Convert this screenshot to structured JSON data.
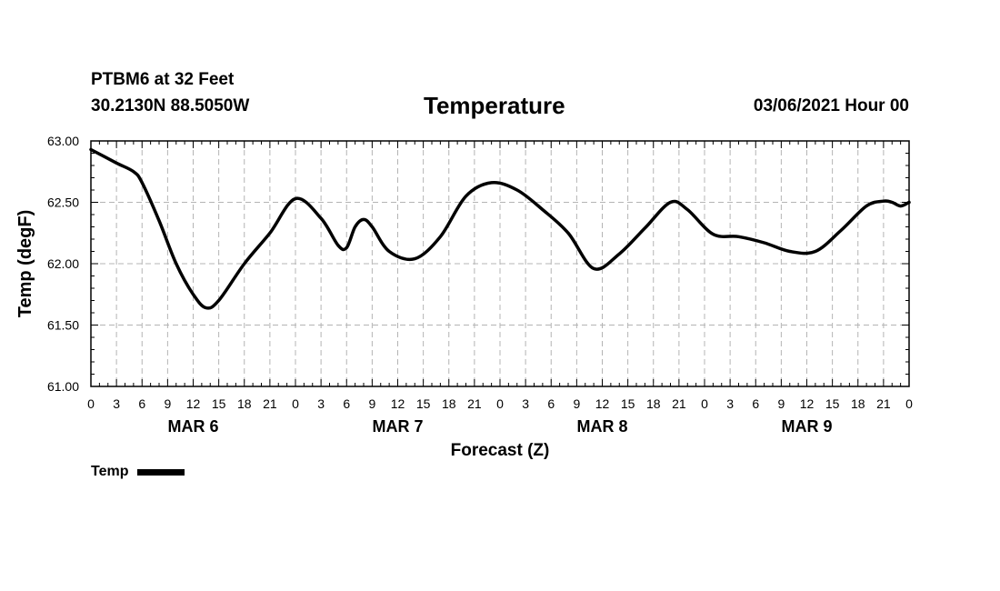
{
  "header": {
    "station": "PTBM6 at 32 Feet",
    "coords": "30.2130N 88.5050W",
    "title": "Temperature",
    "run_time": "03/06/2021 Hour 00"
  },
  "chart_data": {
    "type": "line",
    "title": "Temperature",
    "xlabel": "Forecast (Z)",
    "ylabel": "Temp (degF)",
    "ylim": [
      61.0,
      63.0
    ],
    "yticks": [
      "63.00",
      "62.50",
      "62.00",
      "61.50",
      "61.00"
    ],
    "xlim_hours": [
      0,
      96
    ],
    "hour_tick_labels": [
      "0",
      "3",
      "6",
      "9",
      "12",
      "15",
      "18",
      "21",
      "0",
      "3",
      "6",
      "9",
      "12",
      "15",
      "18",
      "21",
      "0",
      "3",
      "6",
      "9",
      "12",
      "15",
      "18",
      "21",
      "0",
      "3",
      "6",
      "9",
      "12",
      "15",
      "18",
      "21",
      "0"
    ],
    "day_labels": [
      "MAR 6",
      "MAR 7",
      "MAR 8",
      "MAR 9"
    ],
    "grid": true,
    "legend": "bottom-left",
    "series": [
      {
        "name": "Temp",
        "color": "#000000",
        "x": [
          0,
          3,
          5,
          6,
          8,
          10,
          12,
          13.5,
          15,
          18,
          21,
          24,
          27,
          29,
          30,
          31,
          32,
          33,
          35,
          38,
          41,
          44,
          47,
          50,
          53,
          56,
          59,
          62,
          65,
          68,
          70,
          73,
          76,
          79,
          82,
          85,
          88,
          91,
          93,
          94,
          95,
          96
        ],
        "y": [
          62.93,
          62.82,
          62.75,
          62.66,
          62.35,
          62.0,
          61.75,
          61.64,
          61.7,
          62.0,
          62.25,
          62.53,
          62.37,
          62.15,
          62.13,
          62.3,
          62.36,
          62.3,
          62.1,
          62.04,
          62.22,
          62.55,
          62.66,
          62.6,
          62.44,
          62.25,
          61.96,
          62.08,
          62.29,
          62.5,
          62.44,
          62.24,
          62.22,
          62.17,
          62.1,
          62.1,
          62.27,
          62.47,
          62.51,
          62.5,
          62.47,
          62.5
        ]
      }
    ]
  },
  "legend": {
    "label": "Temp"
  }
}
